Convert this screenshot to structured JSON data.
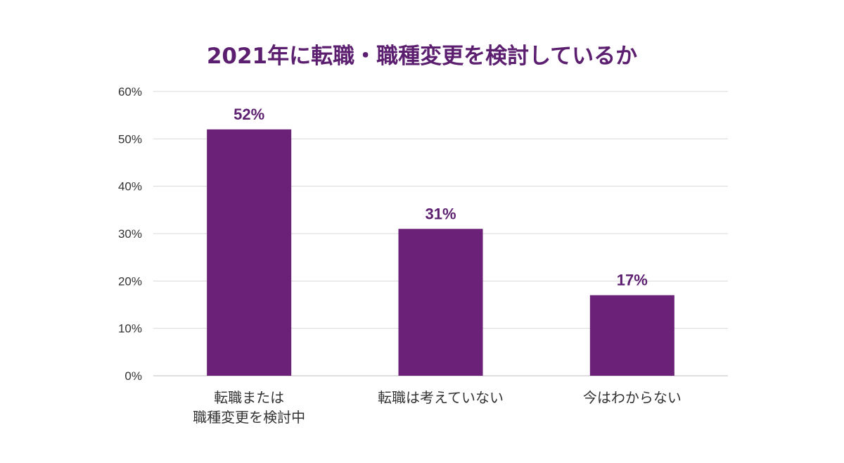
{
  "chart_data": {
    "type": "bar",
    "title": "2021年に転職・職種変更を検討しているか",
    "categories": [
      [
        "転職または",
        "職種変更を検討中"
      ],
      [
        "転職は考えていない"
      ],
      [
        "今はわからない"
      ]
    ],
    "values": [
      52,
      31,
      17
    ],
    "value_labels": [
      "52%",
      "31%",
      "17%"
    ],
    "y_ticks": [
      0,
      10,
      20,
      30,
      40,
      50,
      60
    ],
    "y_tick_labels": [
      "0%",
      "10%",
      "20%",
      "30%",
      "40%",
      "50%",
      "60%"
    ],
    "ylim": [
      0,
      60
    ],
    "xlabel": "",
    "ylabel": "",
    "grid": true,
    "legend": "none",
    "colors": {
      "bar": "#6b2178",
      "title": "#5c1f70",
      "value_label": "#5c1f70",
      "grid": "#d9d9d9",
      "axis": "#bfbfbf",
      "text": "#333333"
    }
  }
}
